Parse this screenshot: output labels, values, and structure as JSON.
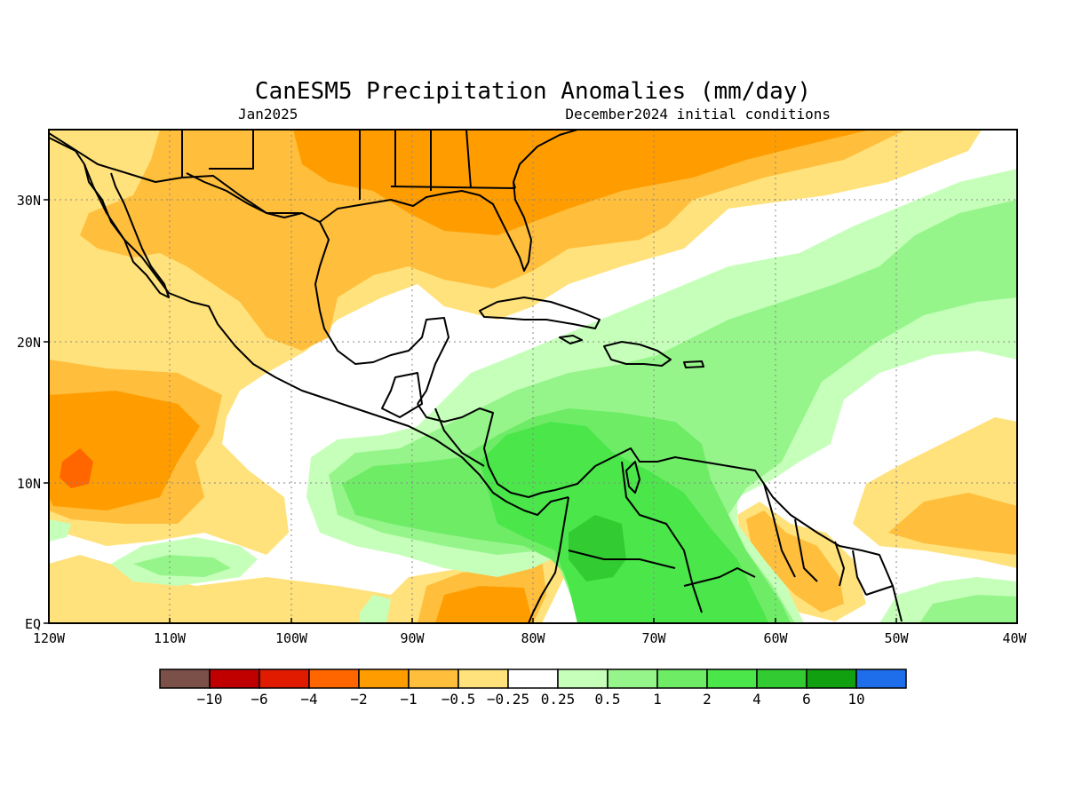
{
  "header": {
    "title": "CanESM5 Precipitation Anomalies (mm/day)",
    "valid_month": "Jan2025",
    "init": "December2024 initial conditions"
  },
  "axes": {
    "x_ticks": [
      "120W",
      "110W",
      "100W",
      "90W",
      "80W",
      "70W",
      "60W",
      "50W",
      "40W"
    ],
    "y_ticks": [
      "EQ",
      "10N",
      "20N",
      "30N"
    ]
  },
  "colorbar": {
    "colors": [
      "#7a5048",
      "#c00000",
      "#e01b00",
      "#ff6600",
      "#ff9d00",
      "#ffbe3c",
      "#ffe27b",
      "#ffffff",
      "#c6ffba",
      "#96f58a",
      "#6eec66",
      "#4ae64a",
      "#32cc32",
      "#10a010",
      "#1e6eeb"
    ],
    "labels": [
      "−10",
      "−6",
      "−4",
      "−2",
      "−1",
      "−0.5",
      "−0.25",
      "0.25",
      "0.5",
      "1",
      "2",
      "4",
      "6",
      "10"
    ]
  },
  "colors": {
    "dry_weak": "#ffe27b",
    "dry_moderate": "#ffbe3c",
    "dry_strong": "#ff9d00",
    "dry_very_strong": "#ff6600",
    "wet_weak": "#c6ffba",
    "wet_moderate": "#96f58a",
    "wet_strong": "#6eec66",
    "wet_very_strong": "#4ae64a",
    "wet_extreme": "#32cc32"
  }
}
